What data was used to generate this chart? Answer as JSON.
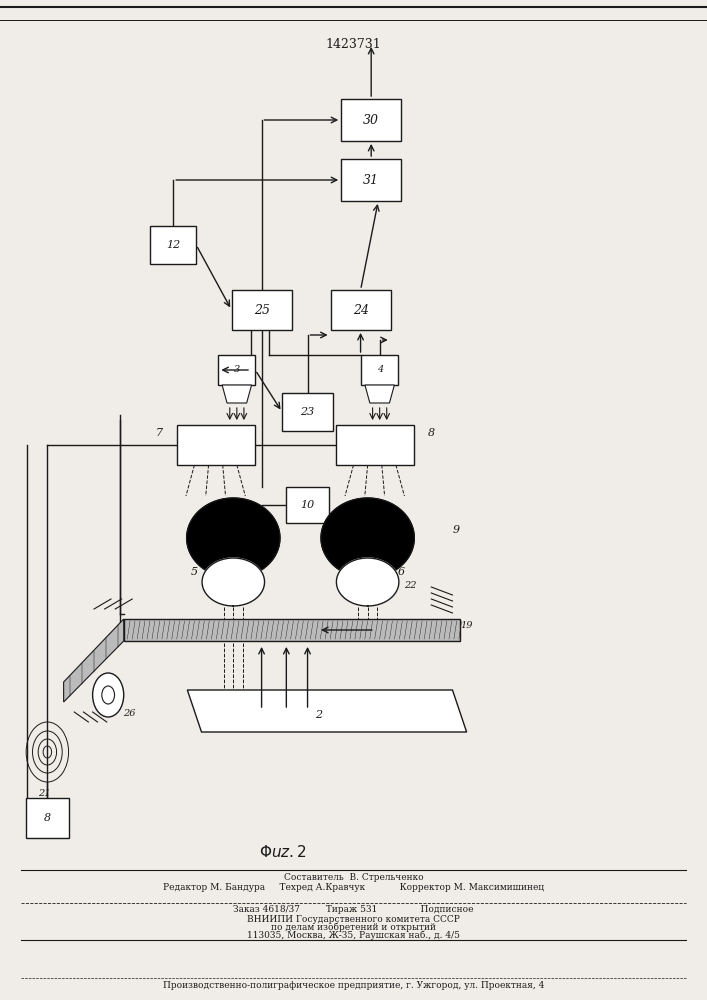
{
  "title": "1423731",
  "bg": "#f0ede8",
  "lc": "#1a1a1a",
  "footer": [
    "Составитель  В. Стрельченко",
    "Редактор М. Бандура     Техред А.Кравчук            Корректор М. Максимишинец",
    "Заказ 4618/37         Тираж 531               Подписное",
    "ВНИИПИ Государственного комитета СССР",
    "по делам изобретений и открытий",
    "113035, Москва, Ж-35, Раушская наб., д. 4/5",
    "Производственно-полиграфическое предприятие, г. Ужгород, ул. Проектная, 4"
  ]
}
